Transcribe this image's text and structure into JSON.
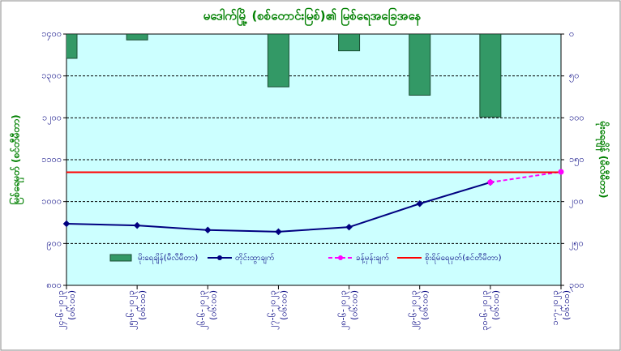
{
  "chart_data": {
    "type": "combo",
    "title": "မဒေါက်မြို့ (စစ်တောင်းမြစ်)၏ မြစ်ရေအခြေအနေ",
    "y_label": "မြစ်ရေမှတ် (စင်တီမီတာ)",
    "y2_label": "မိုးရေချိန် (မီလီမီတာ)",
    "categories": [
      [
        "၂၄-၆-၂၀၂၃",
        "(၀၆:၀၀)"
      ],
      [
        "၂၅-၆-၂၀၂၃",
        "(၀၆:၀၀)"
      ],
      [
        "၂၆-၆-၂၀၂၃",
        "(၀၆:၀၀)"
      ],
      [
        "၂၇-၆-၂၀၂၃",
        "(၀၆:၀၀)"
      ],
      [
        "၂၈-၆-၂၀၂၃",
        "(၀၆:၀၀)"
      ],
      [
        "၂၉-၆-၂၀၂၃",
        "(၀၆:၀၀)"
      ],
      [
        "၃၀-၆-၂၀၂၃",
        "(၀၆:၀၀)"
      ],
      [
        "၁-၇-၂၀၂၃",
        "(၀၆:၀၀)"
      ]
    ],
    "series": [
      {
        "name": "မိုးရေချိန်(မီလီမီတာ)",
        "type": "bar",
        "axis": "y2",
        "color": "#339966",
        "values": [
          29,
          7,
          null,
          63,
          20,
          73,
          99,
          null
        ]
      },
      {
        "name": "တိုင်းထွာချက်",
        "type": "line",
        "color": "#000080",
        "values": [
          947,
          943,
          932,
          928,
          939,
          995,
          1046,
          null
        ]
      },
      {
        "name": "ခန့်မှန်းချက်",
        "type": "line",
        "dashed": true,
        "color": "#ff00ff",
        "values": [
          null,
          null,
          null,
          null,
          null,
          null,
          1046,
          1071
        ]
      },
      {
        "name": "စိုးရိမ်ရေမှတ်(စင်တီမီတာ)",
        "type": "line",
        "marker": false,
        "color": "#ff0000",
        "values": [
          1070,
          1070,
          1070,
          1070,
          1070,
          1070,
          1070,
          1070
        ]
      }
    ],
    "ylim": [
      800,
      1400
    ],
    "yticks": [
      {
        "value": 800,
        "label": "၈၀၀"
      },
      {
        "value": 900,
        "label": "၉၀၀"
      },
      {
        "value": 1000,
        "label": "၁၀၀၀"
      },
      {
        "value": 1100,
        "label": "၁၁၀၀"
      },
      {
        "value": 1200,
        "label": "၁၂၀၀"
      },
      {
        "value": 1300,
        "label": "၁၃၀၀"
      },
      {
        "value": 1400,
        "label": "၁၄၀၀"
      }
    ],
    "y2lim": [
      300,
      0
    ],
    "y2ticks": [
      {
        "value": 300,
        "label": "၃၀၀"
      },
      {
        "value": 250,
        "label": "၂၅၀"
      },
      {
        "value": 200,
        "label": "၂၀၀"
      },
      {
        "value": 150,
        "label": "၁၅၀"
      },
      {
        "value": 100,
        "label": "၁၀၀"
      },
      {
        "value": 50,
        "label": "၅၀"
      },
      {
        "value": 0,
        "label": "၀"
      }
    ],
    "grid": true,
    "legend": "bottom"
  }
}
